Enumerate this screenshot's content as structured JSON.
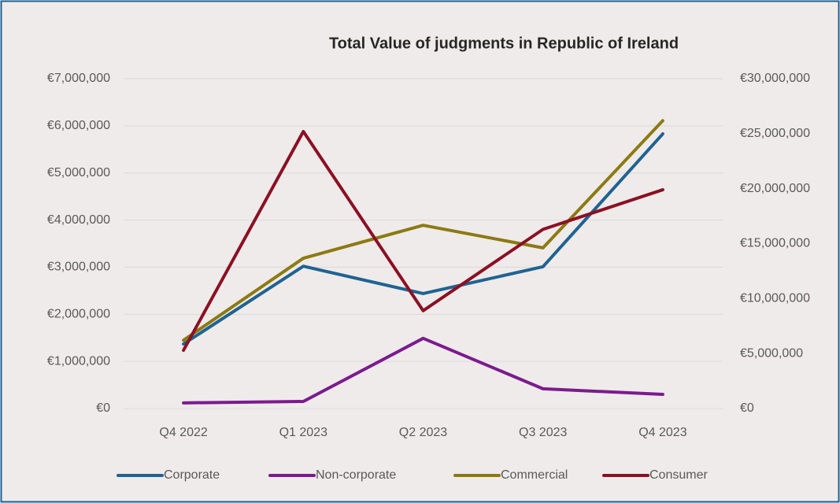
{
  "chart_data": {
    "type": "line",
    "title": "Total Value of judgments in Republic of Ireland",
    "categories": [
      "Q4 2022",
      "Q1 2023",
      "Q2 2023",
      "Q3 2023",
      "Q4 2023"
    ],
    "series": [
      {
        "name": "Corporate",
        "color": "#1f6391",
        "values": [
          1370000,
          3020000,
          2440000,
          3010000,
          5830000
        ]
      },
      {
        "name": "Non-corporate",
        "color": "#7b1b8e",
        "values": [
          120000,
          150000,
          1490000,
          420000,
          300000
        ]
      },
      {
        "name": "Commercial",
        "color": "#8c7a12",
        "values": [
          1450000,
          3190000,
          3890000,
          3410000,
          6110000
        ]
      },
      {
        "name": "Consumer",
        "color": "#8b1024",
        "axis": "y2",
        "values": [
          5300000,
          25200000,
          8900000,
          16300000,
          19900000
        ]
      }
    ],
    "ylim": [
      0,
      7000000
    ],
    "yticks": [
      {
        "value": 0,
        "label": "€0"
      },
      {
        "value": 1000000,
        "label": "€1,000,000"
      },
      {
        "value": 2000000,
        "label": "€2,000,000"
      },
      {
        "value": 3000000,
        "label": "€3,000,000"
      },
      {
        "value": 4000000,
        "label": "€4,000,000"
      },
      {
        "value": 5000000,
        "label": "€5,000,000"
      },
      {
        "value": 6000000,
        "label": "€6,000,000"
      },
      {
        "value": 7000000,
        "label": "€7,000,000"
      }
    ],
    "y2lim": [
      0,
      30000000
    ],
    "y2ticks": [
      {
        "value": 0,
        "label": "€0"
      },
      {
        "value": 5000000,
        "label": "€5,000,000"
      },
      {
        "value": 10000000,
        "label": "€10,000,000"
      },
      {
        "value": 15000000,
        "label": "€15,000,000"
      },
      {
        "value": 20000000,
        "label": "€20,000,000"
      },
      {
        "value": 25000000,
        "label": "€25,000,000"
      },
      {
        "value": 30000000,
        "label": "€30,000,000"
      }
    ],
    "grid": true,
    "legend": "bottom"
  }
}
